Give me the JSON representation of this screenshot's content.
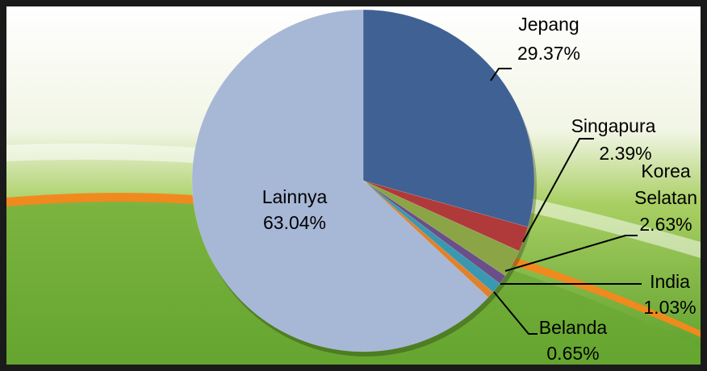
{
  "chart_data": {
    "type": "pie",
    "categories": [
      "Jepang",
      "Singapura",
      "Korea Selatan",
      null,
      "India",
      "Belanda",
      "Lainnya"
    ],
    "values": [
      29.37,
      2.39,
      2.63,
      0.89,
      1.03,
      0.65,
      63.04
    ],
    "value_labels": [
      "29.37%",
      "2.39%",
      "2.63%",
      null,
      "1.03%",
      "0.65%",
      "63.04%"
    ],
    "colors": [
      "#3f6193",
      "#b03a3a",
      "#8aa446",
      "#6a4f8a",
      "#3a98b0",
      "#e2812c",
      "#a7b7d6"
    ]
  }
}
